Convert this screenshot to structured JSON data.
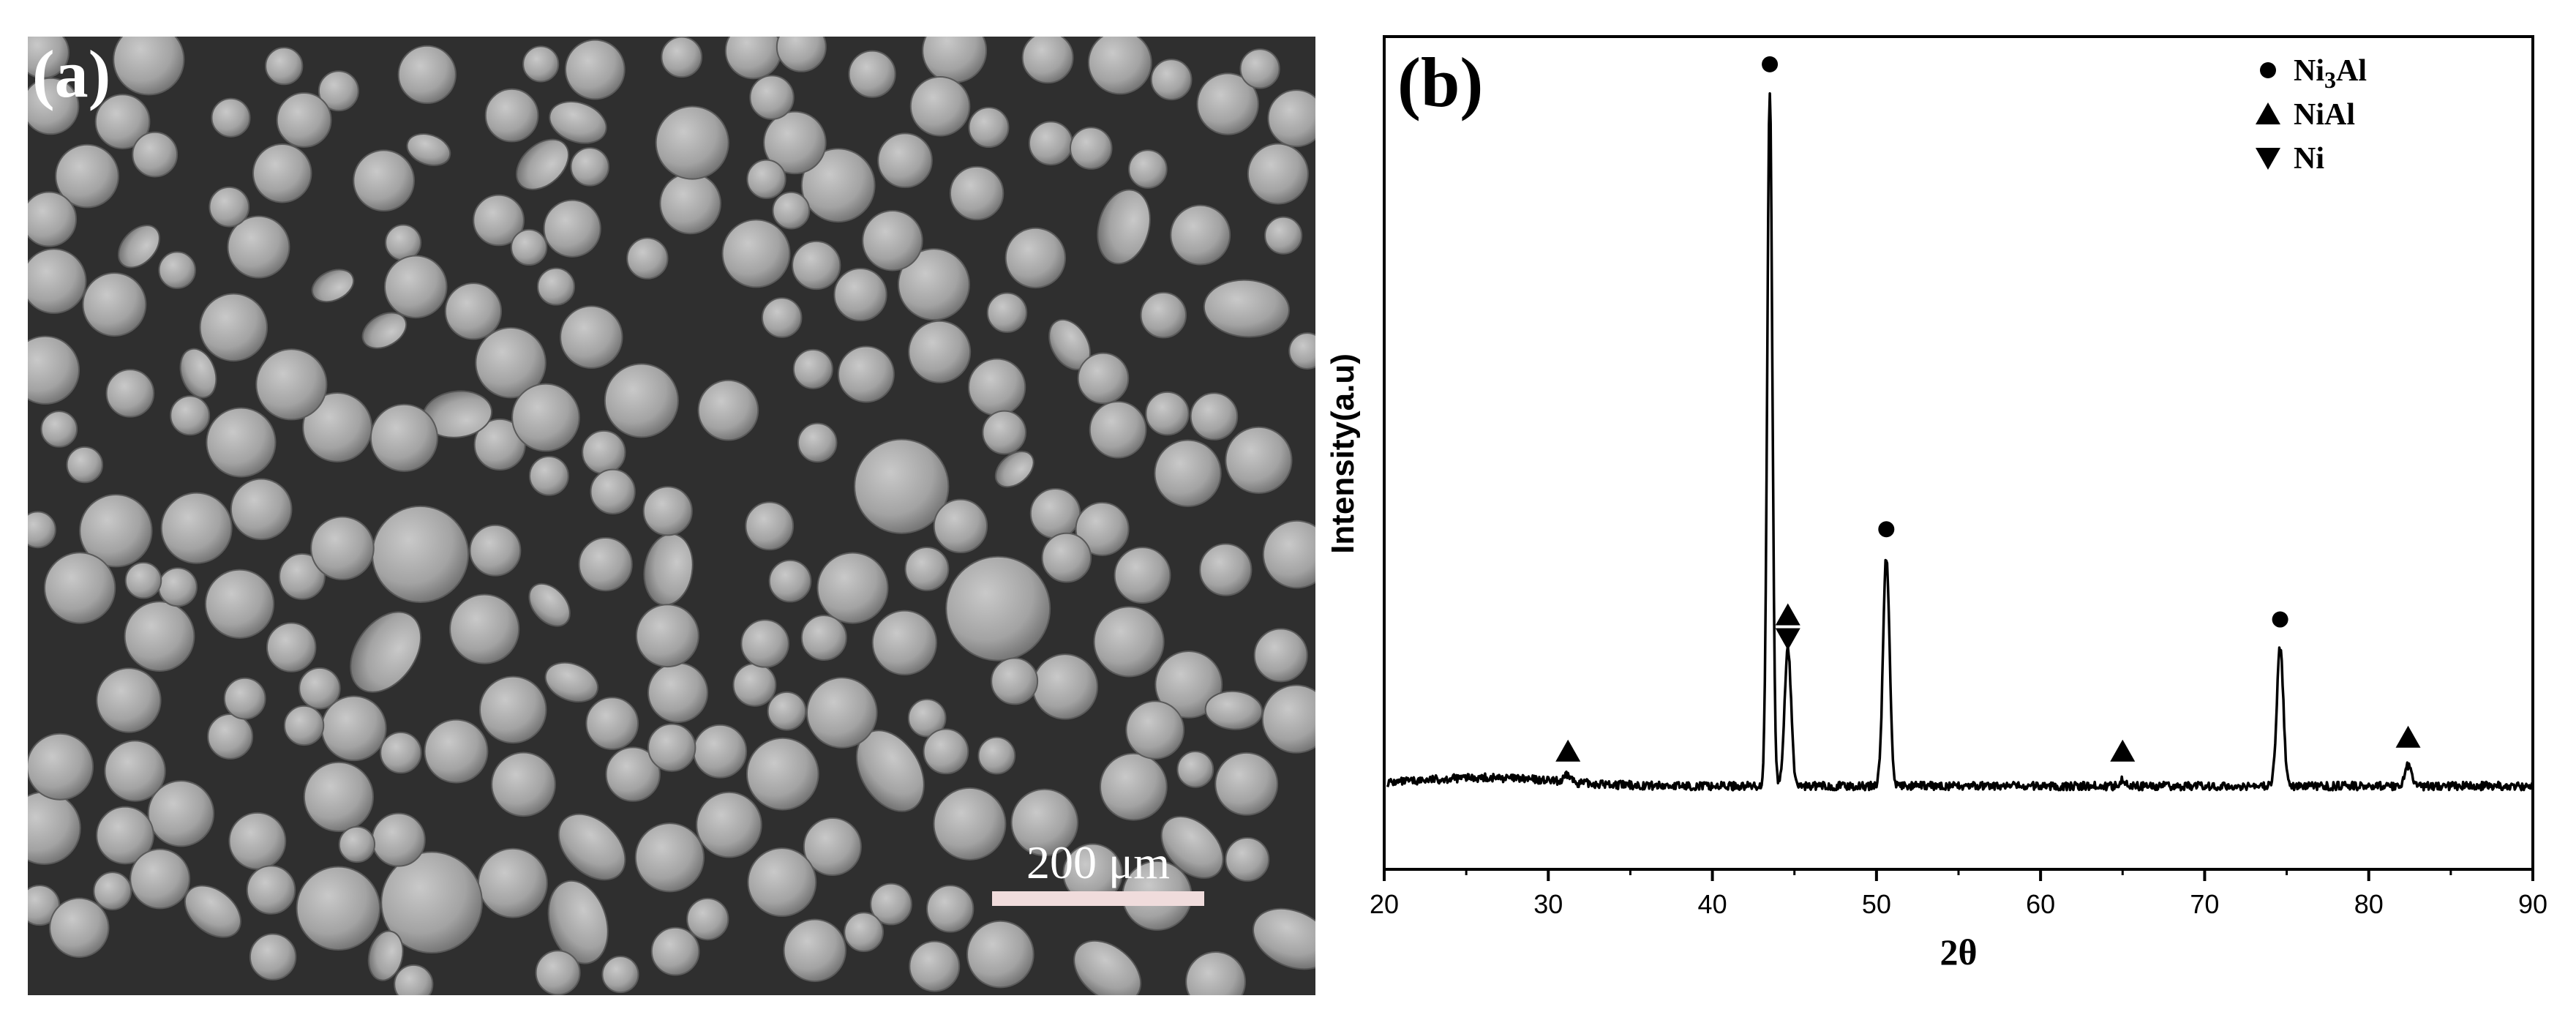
{
  "panel_a": {
    "label": "(a)",
    "scale_bar_label": "200 μm",
    "colors": {
      "background": "#2f2f2f",
      "particle": "#a4a4a4",
      "scale_bar": "#f0dcdc"
    }
  },
  "panel_b": {
    "label": "(b)",
    "legend": {
      "items": [
        {
          "symbol": "circle-icon",
          "prefix": "Ni",
          "subscript": "3",
          "suffix": "Al"
        },
        {
          "symbol": "triangle-up-icon",
          "prefix": "NiAl",
          "subscript": "",
          "suffix": ""
        },
        {
          "symbol": "triangle-down-icon",
          "prefix": "Ni",
          "subscript": "",
          "suffix": ""
        }
      ]
    }
  },
  "chart_data": {
    "type": "line",
    "xlabel": "2θ",
    "ylabel": "Intensity(a.u)",
    "xlim": [
      20,
      90
    ],
    "xticks": [
      20,
      30,
      40,
      50,
      60,
      70,
      80,
      90
    ],
    "ylim": [
      0,
      1.2
    ],
    "yticks_shown": false,
    "grid": false,
    "legend_position": "top-right",
    "baseline": 0.12,
    "peaks": [
      {
        "x": 43.5,
        "height": 1.0,
        "phase": "Ni3Al"
      },
      {
        "x": 44.6,
        "height": 0.2,
        "phase": "NiAl+Ni"
      },
      {
        "x": 50.6,
        "height": 0.33,
        "phase": "Ni3Al"
      },
      {
        "x": 74.6,
        "height": 0.2,
        "phase": "Ni3Al"
      },
      {
        "x": 31.2,
        "height": 0.01,
        "phase": "NiAl"
      },
      {
        "x": 65.0,
        "height": 0.01,
        "phase": "NiAl"
      },
      {
        "x": 82.4,
        "height": 0.03,
        "phase": "NiAl"
      }
    ],
    "markers": [
      {
        "x": 43.5,
        "symbol": "circle",
        "phase": "Ni3Al"
      },
      {
        "x": 50.6,
        "symbol": "circle",
        "phase": "Ni3Al"
      },
      {
        "x": 74.6,
        "symbol": "circle",
        "phase": "Ni3Al"
      },
      {
        "x": 31.2,
        "symbol": "triangle-up",
        "phase": "NiAl"
      },
      {
        "x": 44.6,
        "symbol": "triangle-up",
        "phase": "NiAl"
      },
      {
        "x": 65.0,
        "symbol": "triangle-up",
        "phase": "NiAl"
      },
      {
        "x": 82.4,
        "symbol": "triangle-up",
        "phase": "NiAl"
      },
      {
        "x": 44.6,
        "symbol": "triangle-down",
        "phase": "Ni"
      }
    ]
  }
}
